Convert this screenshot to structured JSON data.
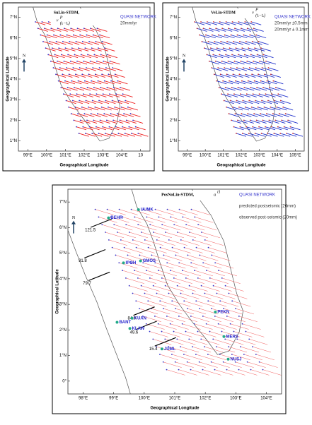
{
  "panels": [
    {
      "title": "SuLin-STDM,",
      "symbol": "v",
      "symbol_sup": "P",
      "symbol_sub": "(tᵢ−tₐ)",
      "x_label": "Geographical Longitude",
      "y_label": "Geographical Latitude",
      "north": "N",
      "xticks": [
        "99°E",
        "100°E",
        "101°E",
        "102°E",
        "103°E",
        "104°E",
        "10"
      ],
      "yticks": [
        "1°N",
        "2°N",
        "3°N",
        "4°N",
        "5°N",
        "6°N",
        "7°N"
      ],
      "legend": [
        "QUASI NETWORK",
        "20mm/yr"
      ]
    },
    {
      "title": "VeLin-STDM",
      "symbol": "v",
      "symbol_sup": "P",
      "symbol_sub": "(tᵢ−tₐ)",
      "x_label": "Geographical Longitude",
      "y_label": "Geographical Latitude",
      "north": "N",
      "xticks": [
        "99°E",
        "100°E",
        "101°E",
        "102°E",
        "103°E",
        "104°E",
        "105°E"
      ],
      "yticks": [
        "1°N",
        "2°N",
        "3°N",
        "4°N",
        "5°N",
        "6°N",
        "7°N"
      ],
      "legend": [
        "QUASI NETWORK",
        "20mm/yr ±0.5mm",
        "20mm/yr ± 0.1mm"
      ]
    },
    {
      "title": "PosNoLin-STDM,",
      "symbol": "a",
      "symbol_sup": "t1",
      "symbol_sub": "",
      "x_label": "Geographical Longitude",
      "y_label": "Geographical Latitude",
      "north": "N",
      "xticks": [
        "98°E",
        "99°E",
        "100°E",
        "101°E",
        "102°E",
        "103°E",
        "104°E"
      ],
      "yticks": [
        "0°",
        "1°N",
        "2°N",
        "3°N",
        "4°N",
        "5°N",
        "6°N",
        "7°N"
      ],
      "legend": [
        "QUASI NETWORK",
        "predicted postseismic (20mm)",
        "observed post-seismic (20mm)"
      ],
      "magnitudes": [
        "121.5",
        "91.8",
        "79.7",
        "84.9",
        "49.6",
        "15.4"
      ],
      "stations": [
        "UUMK",
        "BEHR",
        "IPOH",
        "GMOS",
        "KUAN",
        "BANT",
        "KLAW",
        "PEKN",
        "MERS",
        "JUML",
        "NUSJ"
      ]
    }
  ]
}
